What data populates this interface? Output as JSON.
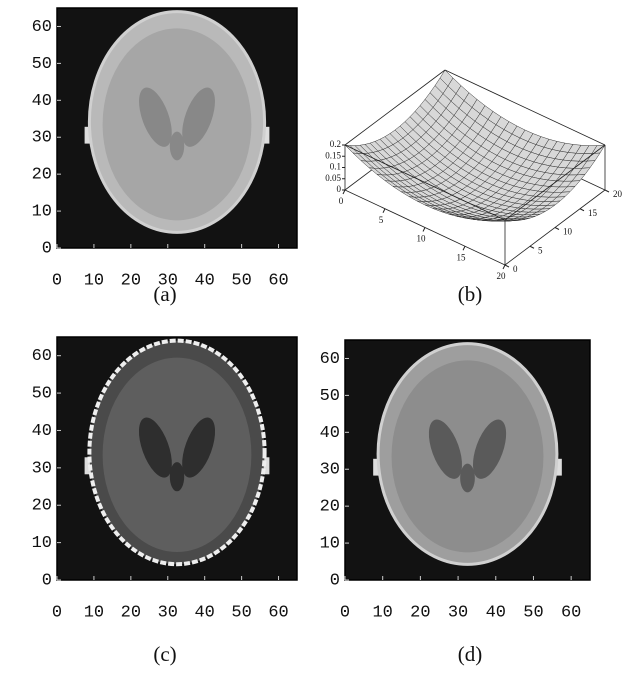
{
  "chart_data": [
    {
      "type": "image",
      "caption": "(a)",
      "xlim": [
        0,
        65
      ],
      "ylim": [
        0,
        65
      ],
      "xticks": [
        0,
        10,
        20,
        30,
        40,
        50,
        60
      ],
      "yticks": [
        0,
        10,
        20,
        30,
        40,
        50,
        60
      ]
    },
    {
      "type": "surface",
      "caption": "(b)",
      "xlim": [
        0,
        20
      ],
      "ylim": [
        0,
        20
      ],
      "zlim": [
        0,
        0.2
      ],
      "xticks": [
        0,
        5,
        10,
        15,
        20
      ],
      "yticks": [
        0,
        5,
        10,
        15,
        20
      ],
      "zticks": [
        0,
        0.05,
        0.1,
        0.15,
        0.2
      ]
    },
    {
      "type": "image",
      "caption": "(c)",
      "xlim": [
        0,
        65
      ],
      "ylim": [
        0,
        65
      ],
      "xticks": [
        0,
        10,
        20,
        30,
        40,
        50,
        60
      ],
      "yticks": [
        0,
        10,
        20,
        30,
        40,
        50,
        60
      ]
    },
    {
      "type": "image",
      "caption": "(d)",
      "xlim": [
        0,
        65
      ],
      "ylim": [
        0,
        65
      ],
      "xticks": [
        0,
        10,
        20,
        30,
        40,
        50,
        60
      ],
      "yticks": [
        0,
        10,
        20,
        30,
        40,
        50,
        60
      ]
    }
  ]
}
